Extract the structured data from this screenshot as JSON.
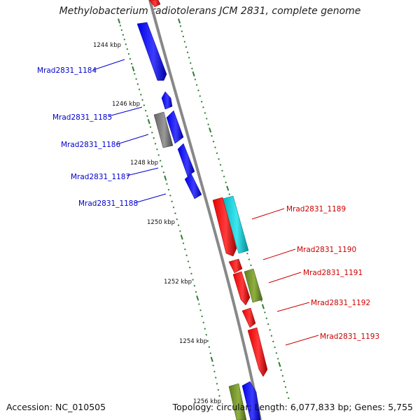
{
  "title": "Methylobacterium radiotolerans JCM 2831, complete genome",
  "accession": "Accession: NC_010505",
  "topology": "Topology: circular; Length: 6,077,833 bp; Genes: 5,755",
  "colors": {
    "backbone": "#888888",
    "tick": "#2e7d32",
    "blue_gene": "#0000e6",
    "red_gene": "#e60000",
    "gray_gene": "#777777",
    "cyan_gene": "#00c8d2",
    "olive_gene": "#6b8e23",
    "blue_label": "#0000cc",
    "red_label": "#cc0000"
  },
  "kbp_labels": [
    "1244 kbp",
    "1246 kbp",
    "1248 kbp",
    "1250 kbp",
    "1252 kbp",
    "1254 kbp",
    "1256 kbp"
  ],
  "genes_left": [
    {
      "name": "Mrad2831_1184",
      "color": "blue_gene"
    },
    {
      "name": "Mrad2831_1185",
      "color": "blue_gene"
    },
    {
      "name": "Mrad2831_1186",
      "color": "blue_gene"
    },
    {
      "name": "Mrad2831_1187",
      "color": "blue_gene"
    },
    {
      "name": "Mrad2831_1188",
      "color": "blue_gene"
    }
  ],
  "genes_right": [
    {
      "name": "Mrad2831_1189",
      "color": "red_gene"
    },
    {
      "name": "Mrad2831_1190",
      "color": "red_gene"
    },
    {
      "name": "Mrad2831_1191",
      "color": "red_gene"
    },
    {
      "name": "Mrad2831_1192",
      "color": "red_gene"
    },
    {
      "name": "Mrad2831_1193",
      "color": "red_gene"
    }
  ]
}
